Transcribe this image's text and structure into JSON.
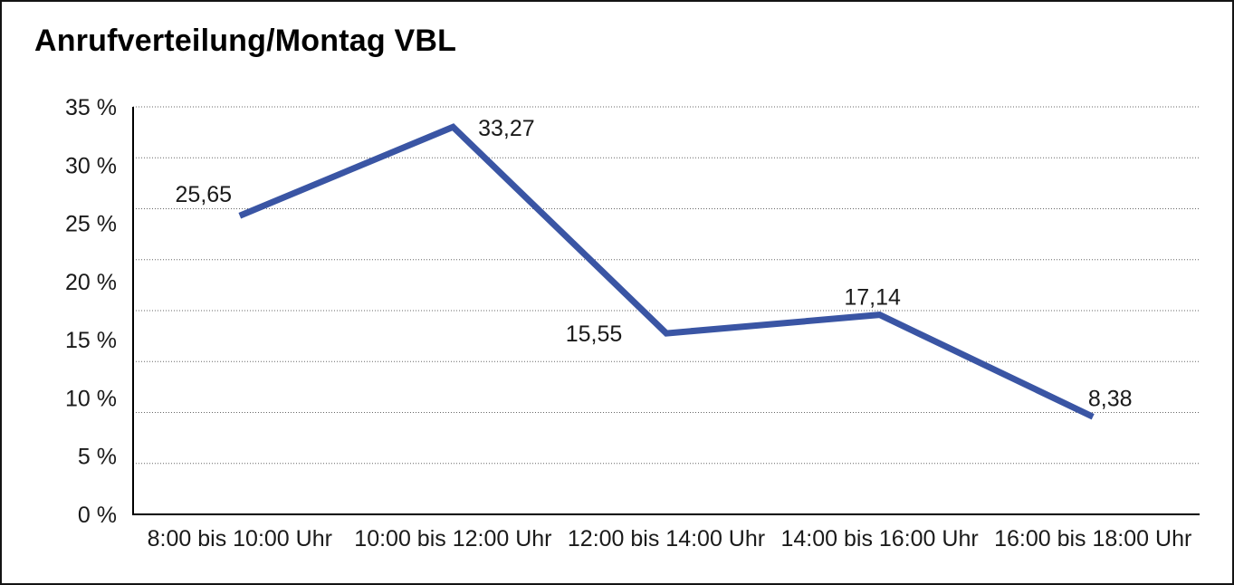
{
  "page": {
    "title": "Anrufverteilung/Montag VBL"
  },
  "chart_data": {
    "type": "line",
    "title": "Anrufverteilung/Montag VBL",
    "categories": [
      "8:00 bis 10:00 Uhr",
      "10:00 bis 12:00 Uhr",
      "12:00 bis 14:00 Uhr",
      "14:00 bis 16:00 Uhr",
      "16:00 bis 18:00 Uhr"
    ],
    "values": [
      25.65,
      33.27,
      15.55,
      17.14,
      8.38
    ],
    "point_labels": [
      "25,65",
      "33,27",
      "15,55",
      "17,14",
      "8,38"
    ],
    "xlabel": "",
    "ylabel": "",
    "ylim": [
      0,
      35
    ],
    "y_tick_labels": [
      "35 %",
      "30 %",
      "25 %",
      "20 %",
      "15 %",
      "10 %",
      "5 %",
      "0 %"
    ],
    "y_tick_step": 5,
    "value_suffix": "%",
    "decimal_separator": ",",
    "grid": "horizontal dotted lines, 9 evenly spaced levels, top dotted, bottom solid axis",
    "legend": "none",
    "colors": {
      "line": "#3A55A4",
      "text": "#1A1A1A",
      "grid": "#666666",
      "axis": "#000000",
      "background": "#FFFFFF",
      "border": "#141414"
    }
  }
}
